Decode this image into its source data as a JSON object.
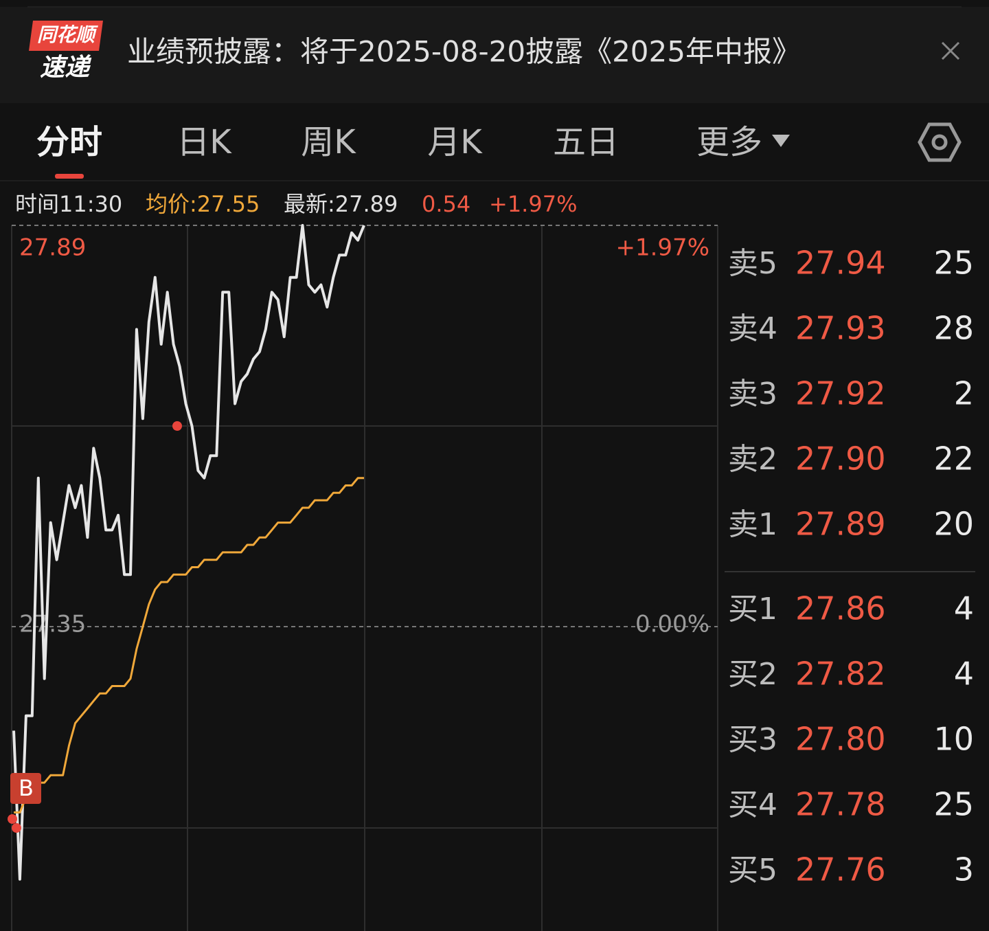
{
  "notice": {
    "logo_top": "同花顺",
    "logo_bottom": "速递",
    "text": "业绩预披露：将于2025-08-20披露《2025年中报》"
  },
  "tabs": [
    "分时",
    "日K",
    "周K",
    "月K",
    "五日",
    "更多"
  ],
  "info": {
    "time": "时间11:30",
    "avg": "均价:27.55",
    "latest": "最新:27.89",
    "change": "0.54",
    "pct": "+1.97%"
  },
  "chart_data": {
    "type": "line",
    "series": [
      {
        "color": "#e6e6e6",
        "values": [
          27.21,
          27.01,
          27.23,
          27.23,
          27.55,
          27.28,
          27.49,
          27.44,
          27.49,
          27.54,
          27.51,
          27.54,
          27.47,
          27.59,
          27.55,
          27.48,
          27.48,
          27.5,
          27.42,
          27.42,
          27.75,
          27.63,
          27.76,
          27.82,
          27.73,
          27.8,
          27.73,
          27.7,
          27.65,
          27.62,
          27.56,
          27.55,
          27.58,
          27.58,
          27.8,
          27.8,
          27.65,
          27.68,
          27.69,
          27.71,
          27.72,
          27.75,
          27.8,
          27.79,
          27.74,
          27.82,
          27.82,
          27.89,
          27.81,
          27.8,
          27.81,
          27.78,
          27.82,
          27.85,
          27.85,
          27.88,
          27.87,
          27.89
        ]
      },
      {
        "color": "#f0a83a",
        "values": [
          27.1,
          27.1,
          27.12,
          27.13,
          27.14,
          27.14,
          27.15,
          27.15,
          27.15,
          27.19,
          27.22,
          27.23,
          27.24,
          27.25,
          27.26,
          27.26,
          27.27,
          27.27,
          27.27,
          27.28,
          27.32,
          27.35,
          27.38,
          27.4,
          27.41,
          27.41,
          27.42,
          27.42,
          27.42,
          27.43,
          27.43,
          27.44,
          27.44,
          27.44,
          27.45,
          27.45,
          27.45,
          27.45,
          27.46,
          27.46,
          27.47,
          27.47,
          27.48,
          27.49,
          27.49,
          27.49,
          27.5,
          27.51,
          27.51,
          27.52,
          27.52,
          27.52,
          27.53,
          27.53,
          27.54,
          27.54,
          27.55,
          27.55
        ]
      }
    ],
    "ylim": [
      26.81,
      27.89
    ],
    "yticks": [
      27.89,
      27.35
    ],
    "y2lim": [
      -1.97,
      1.97
    ],
    "y2ticks": [
      {
        "value": 1.97,
        "label": "+1.97%"
      },
      {
        "value": 0,
        "label": "0.00%"
      }
    ],
    "marker": "B"
  },
  "order_book": {
    "asks": [
      {
        "label": "卖5",
        "price": "27.94",
        "volume": "25"
      },
      {
        "label": "卖4",
        "price": "27.93",
        "volume": "28"
      },
      {
        "label": "卖3",
        "price": "27.92",
        "volume": "2"
      },
      {
        "label": "卖2",
        "price": "27.90",
        "volume": "22"
      },
      {
        "label": "卖1",
        "price": "27.89",
        "volume": "20"
      }
    ],
    "bids": [
      {
        "label": "买1",
        "price": "27.86",
        "volume": "4"
      },
      {
        "label": "买2",
        "price": "27.82",
        "volume": "4"
      },
      {
        "label": "买3",
        "price": "27.80",
        "volume": "10"
      },
      {
        "label": "买4",
        "price": "27.78",
        "volume": "25"
      },
      {
        "label": "买5",
        "price": "27.76",
        "volume": "3"
      }
    ]
  }
}
